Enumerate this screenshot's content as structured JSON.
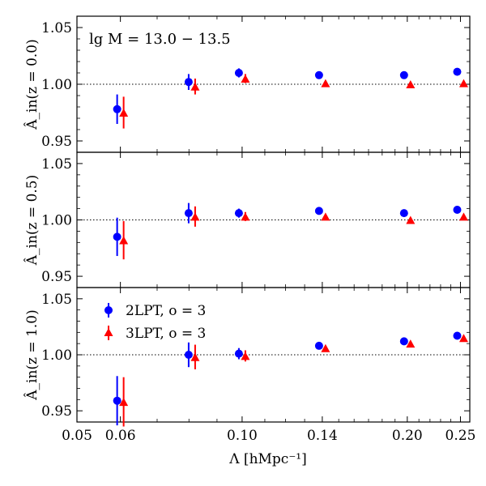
{
  "chart_data": {
    "type": "scatter",
    "x_scale": "log",
    "xlim": [
      0.05,
      0.26
    ],
    "ylim": [
      0.94,
      1.06
    ],
    "reference_line": 1.0,
    "xlabel": "Λ [hMpc⁻¹]",
    "xtick_values": [
      0.05,
      0.06,
      0.1,
      0.14,
      0.2,
      0.25
    ],
    "xtick_labels": [
      "0.05",
      "0.06",
      "0.10",
      "0.14",
      "0.20",
      "0.25"
    ],
    "ytick_values": [
      0.95,
      1.0,
      1.05
    ],
    "ytick_labels": [
      "0.95",
      "1.00",
      "1.05"
    ],
    "annotation": "lg M = 13.0 − 13.5",
    "legend": {
      "location": "upper-left of bottom panel",
      "entries": [
        {
          "label": "2LPT, o = 3",
          "color": "#0000ff",
          "marker": "circle"
        },
        {
          "label": "3LPT, o = 3",
          "color": "#ff0000",
          "marker": "triangle"
        }
      ]
    },
    "panels": [
      {
        "ylabel": "Â_in(z = 0.0)",
        "series": [
          {
            "name": "2LPT, o = 3",
            "color": "#0000ff",
            "marker": "circle",
            "points": [
              {
                "x": 0.06,
                "y": 0.978,
                "err": 0.013
              },
              {
                "x": 0.081,
                "y": 1.002,
                "err": 0.007
              },
              {
                "x": 0.1,
                "y": 1.01,
                "err": 0.004
              },
              {
                "x": 0.14,
                "y": 1.008,
                "err": 0.0
              },
              {
                "x": 0.2,
                "y": 1.008,
                "err": 0.0
              },
              {
                "x": 0.25,
                "y": 1.011,
                "err": 0.0
              }
            ]
          },
          {
            "name": "3LPT, o = 3",
            "color": "#ff0000",
            "marker": "triangle",
            "points": [
              {
                "x": 0.06,
                "y": 0.975,
                "err": 0.014
              },
              {
                "x": 0.081,
                "y": 0.998,
                "err": 0.007
              },
              {
                "x": 0.1,
                "y": 1.005,
                "err": 0.004
              },
              {
                "x": 0.14,
                "y": 1.001,
                "err": 0.0
              },
              {
                "x": 0.2,
                "y": 1.0,
                "err": 0.0
              },
              {
                "x": 0.25,
                "y": 1.001,
                "err": 0.0
              }
            ]
          }
        ]
      },
      {
        "ylabel": "Â_in(z = 0.5)",
        "series": [
          {
            "name": "2LPT, o = 3",
            "color": "#0000ff",
            "marker": "circle",
            "points": [
              {
                "x": 0.06,
                "y": 0.985,
                "err": 0.017
              },
              {
                "x": 0.081,
                "y": 1.006,
                "err": 0.009
              },
              {
                "x": 0.1,
                "y": 1.006,
                "err": 0.004
              },
              {
                "x": 0.14,
                "y": 1.008,
                "err": 0.0
              },
              {
                "x": 0.2,
                "y": 1.006,
                "err": 0.0
              },
              {
                "x": 0.25,
                "y": 1.009,
                "err": 0.0
              }
            ]
          },
          {
            "name": "3LPT, o = 3",
            "color": "#ff0000",
            "marker": "triangle",
            "points": [
              {
                "x": 0.06,
                "y": 0.982,
                "err": 0.017
              },
              {
                "x": 0.081,
                "y": 1.003,
                "err": 0.009
              },
              {
                "x": 0.1,
                "y": 1.003,
                "err": 0.004
              },
              {
                "x": 0.14,
                "y": 1.003,
                "err": 0.0
              },
              {
                "x": 0.2,
                "y": 1.0,
                "err": 0.0
              },
              {
                "x": 0.25,
                "y": 1.003,
                "err": 0.0
              }
            ]
          }
        ]
      },
      {
        "ylabel": "Â_in(z = 1.0)",
        "series": [
          {
            "name": "2LPT, o = 3",
            "color": "#0000ff",
            "marker": "circle",
            "points": [
              {
                "x": 0.06,
                "y": 0.959,
                "err": 0.022
              },
              {
                "x": 0.081,
                "y": 1.0,
                "err": 0.011
              },
              {
                "x": 0.1,
                "y": 1.001,
                "err": 0.005
              },
              {
                "x": 0.14,
                "y": 1.008,
                "err": 0.0
              },
              {
                "x": 0.2,
                "y": 1.012,
                "err": 0.0
              },
              {
                "x": 0.25,
                "y": 1.017,
                "err": 0.0
              }
            ]
          },
          {
            "name": "3LPT, o = 3",
            "color": "#ff0000",
            "marker": "triangle",
            "points": [
              {
                "x": 0.06,
                "y": 0.958,
                "err": 0.022
              },
              {
                "x": 0.081,
                "y": 0.998,
                "err": 0.011
              },
              {
                "x": 0.1,
                "y": 0.999,
                "err": 0.005
              },
              {
                "x": 0.14,
                "y": 1.006,
                "err": 0.0
              },
              {
                "x": 0.2,
                "y": 1.01,
                "err": 0.0
              },
              {
                "x": 0.25,
                "y": 1.015,
                "err": 0.0
              }
            ]
          }
        ]
      }
    ]
  }
}
